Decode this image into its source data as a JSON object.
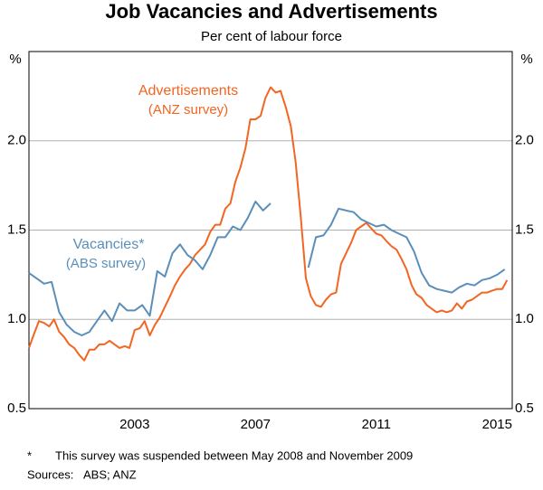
{
  "chart_data": {
    "type": "line",
    "title": "Job Vacancies and Advertisements",
    "subtitle": "Per cent of labour force",
    "y_unit": "%",
    "y2_unit": "%",
    "xlim": [
      2000.0,
      2016.0
    ],
    "xticks": [
      {
        "value": 2003.5,
        "label": "2003"
      },
      {
        "value": 2007.5,
        "label": "2007"
      },
      {
        "value": 2011.5,
        "label": "2011"
      },
      {
        "value": 2015.5,
        "label": "2015"
      }
    ],
    "ylim": [
      0.5,
      2.5
    ],
    "yticks": [
      0.5,
      {
        "value": 1,
        "label": "1.0"
      },
      1.5,
      {
        "value": 2,
        "label": "2.0"
      }
    ],
    "y2lim": [
      0.5,
      2.5
    ],
    "y2ticks": [
      0.5,
      {
        "value": 1,
        "label": "1.0"
      },
      1.5,
      {
        "value": 2,
        "label": "2.0"
      }
    ],
    "grid": true,
    "annotations": [
      "Advertisements",
      "(ANZ survey)",
      "Vacancies*",
      "(ABS survey)"
    ],
    "footnote_marker": "*",
    "footnote": "This survey was suspended between May 2008 and November 2009",
    "sources_label": "Sources:",
    "sources": "ABS; ANZ",
    "series": [
      {
        "name": "Advertisements",
        "color": "#f26522",
        "x": [
          2000.0,
          2000.17,
          2000.33,
          2000.5,
          2000.67,
          2000.83,
          2001.0,
          2001.17,
          2001.33,
          2001.5,
          2001.67,
          2001.83,
          2002.0,
          2002.17,
          2002.33,
          2002.5,
          2002.67,
          2002.83,
          2003.0,
          2003.17,
          2003.33,
          2003.5,
          2003.67,
          2003.83,
          2004.0,
          2004.17,
          2004.33,
          2004.5,
          2004.67,
          2004.83,
          2005.0,
          2005.17,
          2005.33,
          2005.5,
          2005.67,
          2005.83,
          2006.0,
          2006.17,
          2006.33,
          2006.5,
          2006.67,
          2006.83,
          2007.0,
          2007.17,
          2007.33,
          2007.5,
          2007.67,
          2007.83,
          2008.0,
          2008.17,
          2008.33,
          2008.5,
          2008.67,
          2008.83,
          2009.0,
          2009.17,
          2009.33,
          2009.5,
          2009.67,
          2009.83,
          2010.0,
          2010.17,
          2010.33,
          2010.5,
          2010.67,
          2010.83,
          2011.0,
          2011.17,
          2011.33,
          2011.5,
          2011.67,
          2011.83,
          2012.0,
          2012.17,
          2012.33,
          2012.5,
          2012.67,
          2012.83,
          2013.0,
          2013.17,
          2013.33,
          2013.5,
          2013.67,
          2013.83,
          2014.0,
          2014.17,
          2014.33,
          2014.5,
          2014.67,
          2014.83,
          2015.0,
          2015.17,
          2015.33,
          2015.5,
          2015.67,
          2015.83
        ],
        "values": [
          0.84,
          0.92,
          0.99,
          0.98,
          0.96,
          1.0,
          0.93,
          0.9,
          0.86,
          0.84,
          0.8,
          0.77,
          0.83,
          0.83,
          0.86,
          0.86,
          0.88,
          0.86,
          0.84,
          0.85,
          0.84,
          0.94,
          0.95,
          0.99,
          0.91,
          0.97,
          1.01,
          1.07,
          1.13,
          1.19,
          1.24,
          1.28,
          1.31,
          1.36,
          1.39,
          1.42,
          1.49,
          1.53,
          1.53,
          1.62,
          1.65,
          1.77,
          1.85,
          1.96,
          2.12,
          2.12,
          2.14,
          2.24,
          2.3,
          2.27,
          2.28,
          2.19,
          2.08,
          1.88,
          1.57,
          1.23,
          1.13,
          1.08,
          1.07,
          1.11,
          1.14,
          1.15,
          1.31,
          1.37,
          1.43,
          1.5,
          1.52,
          1.54,
          1.51,
          1.48,
          1.47,
          1.44,
          1.41,
          1.39,
          1.34,
          1.28,
          1.19,
          1.14,
          1.12,
          1.08,
          1.06,
          1.04,
          1.05,
          1.04,
          1.05,
          1.09,
          1.06,
          1.1,
          1.11,
          1.13,
          1.15,
          1.15,
          1.16,
          1.17,
          1.17,
          1.22
        ]
      },
      {
        "name": "Vacancies",
        "color": "#5b8fb9",
        "x": [
          2000.0,
          2000.25,
          2000.5,
          2000.75,
          2001.0,
          2001.25,
          2001.5,
          2001.75,
          2002.0,
          2002.25,
          2002.5,
          2002.75,
          2003.0,
          2003.25,
          2003.5,
          2003.75,
          2004.0,
          2004.25,
          2004.5,
          2004.75,
          2005.0,
          2005.25,
          2005.5,
          2005.75,
          2006.0,
          2006.25,
          2006.5,
          2006.75,
          2007.0,
          2007.25,
          2007.5,
          2007.75,
          2008.0,
          2008.25,
          2008.5,
          2008.75,
          2009.0,
          2009.25,
          2009.5,
          2009.75,
          2010.0,
          2010.25,
          2010.5,
          2010.75,
          2011.0,
          2011.25,
          2011.5,
          2011.75,
          2012.0,
          2012.25,
          2012.5,
          2012.75,
          2013.0,
          2013.25,
          2013.5,
          2013.75,
          2014.0,
          2014.25,
          2014.5,
          2014.75,
          2015.0,
          2015.25,
          2015.5,
          2015.75
        ],
        "values": [
          1.26,
          1.23,
          1.2,
          1.21,
          1.04,
          0.97,
          0.93,
          0.91,
          0.93,
          0.99,
          1.05,
          0.99,
          1.09,
          1.05,
          1.05,
          1.08,
          1.02,
          1.27,
          1.24,
          1.37,
          1.42,
          1.36,
          1.33,
          1.28,
          1.36,
          1.46,
          1.46,
          1.52,
          1.5,
          1.57,
          1.66,
          1.61,
          1.65,
          null,
          null,
          null,
          null,
          1.29,
          1.46,
          1.47,
          1.53,
          1.62,
          1.61,
          1.6,
          1.56,
          1.54,
          1.52,
          1.53,
          1.5,
          1.48,
          1.46,
          1.38,
          1.26,
          1.19,
          1.17,
          1.16,
          1.15,
          1.18,
          1.2,
          1.19,
          1.22,
          1.23,
          1.25,
          1.28
        ]
      }
    ]
  }
}
